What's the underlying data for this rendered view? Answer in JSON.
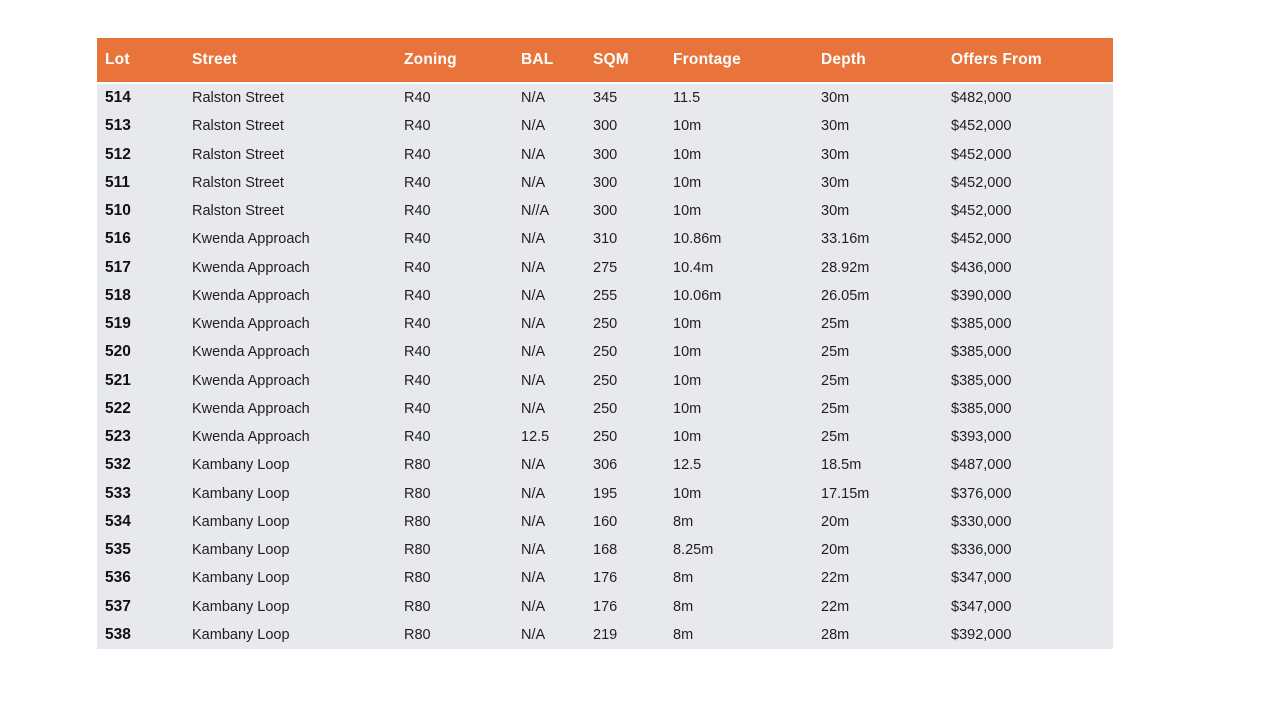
{
  "table": {
    "columns": [
      "Lot",
      "Street",
      "Zoning",
      "BAL",
      "SQM",
      "Frontage",
      "Depth",
      "Offers From"
    ],
    "column_keys": [
      "lot",
      "street",
      "zoning",
      "bal",
      "sqm",
      "frontage",
      "depth",
      "offers_from"
    ],
    "rows": [
      {
        "lot": "514",
        "street": "Ralston Street",
        "zoning": "R40",
        "bal": "N/A",
        "sqm": "345",
        "frontage": "11.5",
        "depth": "30m",
        "offers_from": "$482,000"
      },
      {
        "lot": "513",
        "street": "Ralston Street",
        "zoning": "R40",
        "bal": "N/A",
        "sqm": "300",
        "frontage": "10m",
        "depth": "30m",
        "offers_from": "$452,000"
      },
      {
        "lot": "512",
        "street": "Ralston Street",
        "zoning": "R40",
        "bal": "N/A",
        "sqm": "300",
        "frontage": "10m",
        "depth": "30m",
        "offers_from": "$452,000"
      },
      {
        "lot": "511",
        "street": "Ralston Street",
        "zoning": "R40",
        "bal": "N/A",
        "sqm": "300",
        "frontage": "10m",
        "depth": "30m",
        "offers_from": "$452,000"
      },
      {
        "lot": "510",
        "street": "Ralston Street",
        "zoning": "R40",
        "bal": "N//A",
        "sqm": "300",
        "frontage": "10m",
        "depth": "30m",
        "offers_from": "$452,000"
      },
      {
        "lot": "516",
        "street": "Kwenda Approach",
        "zoning": "R40",
        "bal": "N/A",
        "sqm": "310",
        "frontage": "10.86m",
        "depth": "33.16m",
        "offers_from": "$452,000"
      },
      {
        "lot": "517",
        "street": "Kwenda Approach",
        "zoning": "R40",
        "bal": "N/A",
        "sqm": "275",
        "frontage": "10.4m",
        "depth": "28.92m",
        "offers_from": "$436,000"
      },
      {
        "lot": "518",
        "street": "Kwenda Approach",
        "zoning": "R40",
        "bal": "N/A",
        "sqm": "255",
        "frontage": "10.06m",
        "depth": "26.05m",
        "offers_from": "$390,000"
      },
      {
        "lot": "519",
        "street": "Kwenda Approach",
        "zoning": "R40",
        "bal": "N/A",
        "sqm": "250",
        "frontage": "10m",
        "depth": "25m",
        "offers_from": "$385,000"
      },
      {
        "lot": "520",
        "street": "Kwenda Approach",
        "zoning": "R40",
        "bal": "N/A",
        "sqm": "250",
        "frontage": "10m",
        "depth": "25m",
        "offers_from": "$385,000"
      },
      {
        "lot": "521",
        "street": "Kwenda Approach",
        "zoning": "R40",
        "bal": "N/A",
        "sqm": "250",
        "frontage": "10m",
        "depth": "25m",
        "offers_from": "$385,000"
      },
      {
        "lot": "522",
        "street": "Kwenda Approach",
        "zoning": "R40",
        "bal": "N/A",
        "sqm": "250",
        "frontage": "10m",
        "depth": "25m",
        "offers_from": "$385,000"
      },
      {
        "lot": "523",
        "street": "Kwenda Approach",
        "zoning": "R40",
        "bal": "12.5",
        "sqm": "250",
        "frontage": "10m",
        "depth": "25m",
        "offers_from": "$393,000"
      },
      {
        "lot": "532",
        "street": "Kambany Loop",
        "zoning": "R80",
        "bal": "N/A",
        "sqm": "306",
        "frontage": "12.5",
        "depth": "18.5m",
        "offers_from": "$487,000"
      },
      {
        "lot": "533",
        "street": "Kambany Loop",
        "zoning": "R80",
        "bal": "N/A",
        "sqm": "195",
        "frontage": "10m",
        "depth": "17.15m",
        "offers_from": "$376,000"
      },
      {
        "lot": "534",
        "street": "Kambany Loop",
        "zoning": "R80",
        "bal": "N/A",
        "sqm": "160",
        "frontage": "8m",
        "depth": "20m",
        "offers_from": "$330,000"
      },
      {
        "lot": "535",
        "street": "Kambany Loop",
        "zoning": "R80",
        "bal": "N/A",
        "sqm": "168",
        "frontage": "8.25m",
        "depth": "20m",
        "offers_from": "$336,000"
      },
      {
        "lot": "536",
        "street": "Kambany Loop",
        "zoning": "R80",
        "bal": "N/A",
        "sqm": "176",
        "frontage": "8m",
        "depth": "22m",
        "offers_from": "$347,000"
      },
      {
        "lot": "537",
        "street": "Kambany Loop",
        "zoning": "R80",
        "bal": "N/A",
        "sqm": "176",
        "frontage": "8m",
        "depth": "22m",
        "offers_from": "$347,000"
      },
      {
        "lot": "538",
        "street": "Kambany Loop",
        "zoning": "R80",
        "bal": "N/A",
        "sqm": "219",
        "frontage": "8m",
        "depth": "28m",
        "offers_from": "$392,000"
      }
    ]
  },
  "colors": {
    "header_bg": "#E8743B",
    "header_text": "#FFFFFF",
    "body_bg": "#E7E9ED",
    "body_text": "#1F1F1F"
  }
}
